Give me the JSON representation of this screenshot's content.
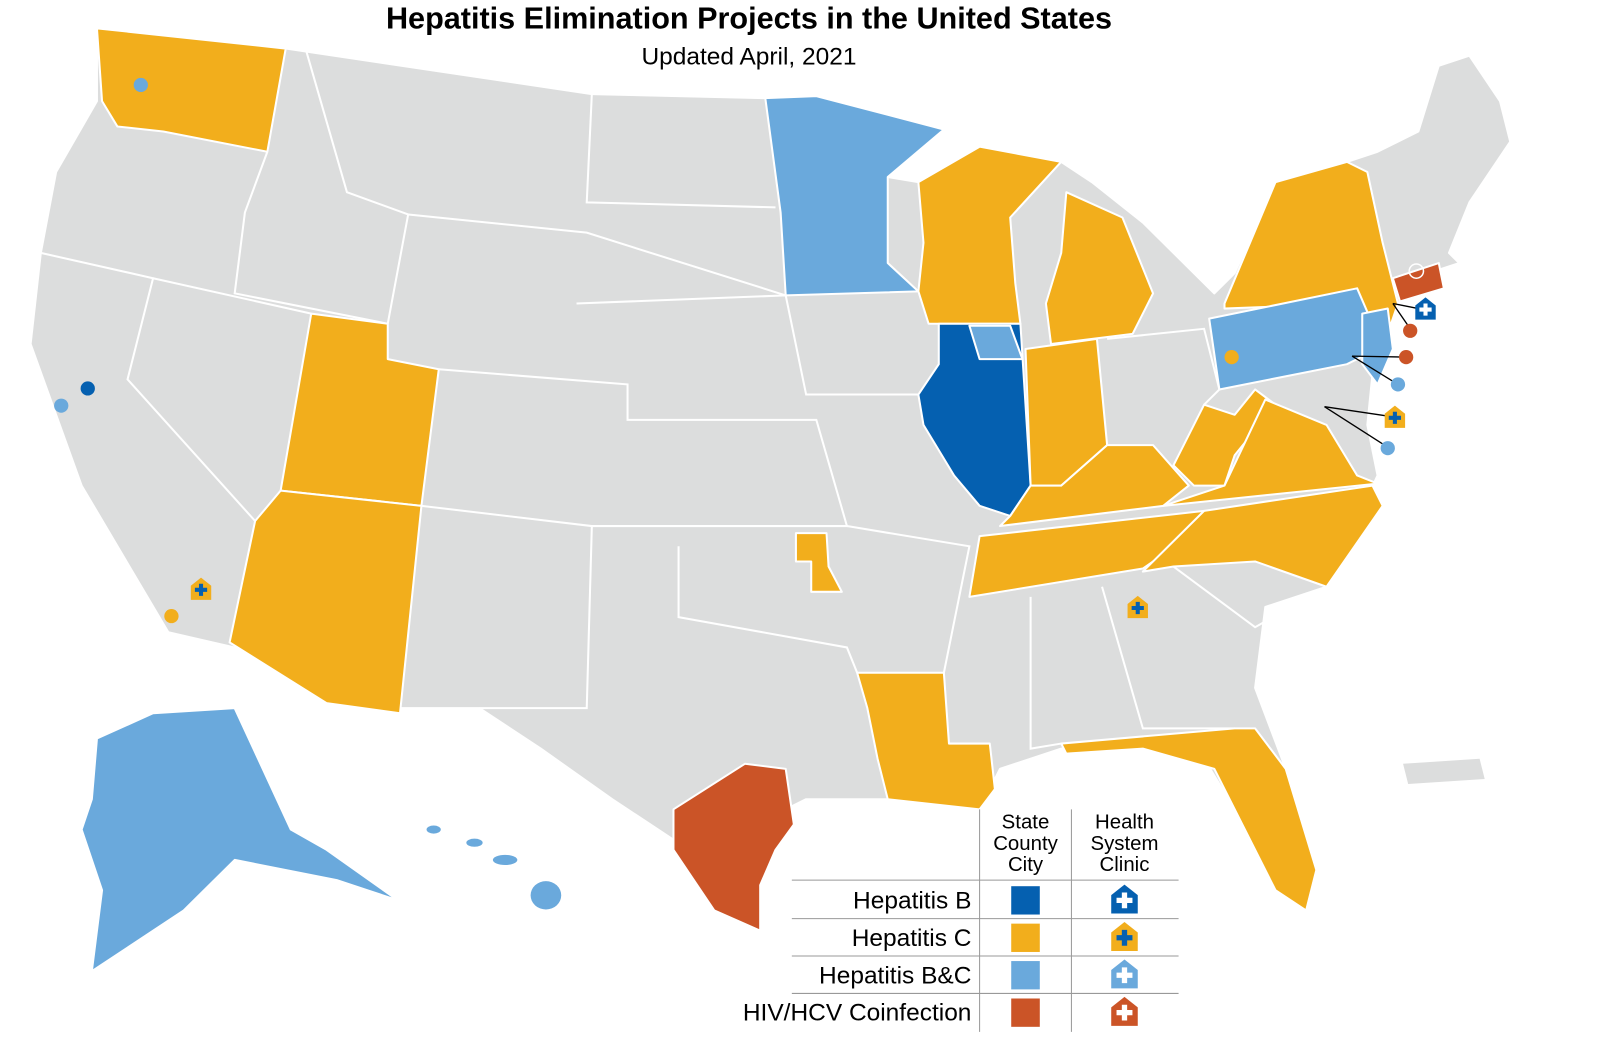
{
  "title": "Hepatitis Elimination Projects in the United States",
  "subtitle": "Updated April, 2021",
  "legend": {
    "column_headers": [
      [
        "State",
        "County",
        "City"
      ],
      [
        "Health",
        "System",
        "Clinic"
      ]
    ],
    "rows": [
      {
        "label": "Hepatitis B",
        "color": "#0560b0"
      },
      {
        "label": "Hepatitis C",
        "color": "#f2ae1c"
      },
      {
        "label": "Hepatitis B&C",
        "color": "#6aa9dc"
      },
      {
        "label": "HIV/HCV Coinfection",
        "color": "#cb5427"
      }
    ]
  }
}
